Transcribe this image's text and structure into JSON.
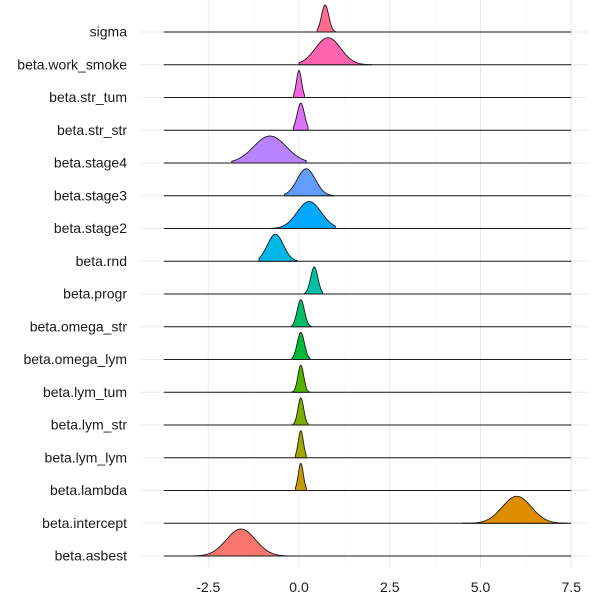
{
  "chart_data": {
    "type": "ridgeline",
    "xlabel": "",
    "ylabel": "",
    "xlim": [
      -4.0,
      7.5
    ],
    "xticks": [
      -2.5,
      0.0,
      2.5,
      5.0,
      7.5
    ],
    "xtick_labels": [
      "-2.5",
      "0.0",
      "2.5",
      "5.0",
      "7.5"
    ],
    "series": [
      {
        "name": "sigma",
        "color": "#FF6C90",
        "mean": 0.72,
        "sd": 0.1,
        "range": [
          0.5,
          1.0
        ]
      },
      {
        "name": "beta.work_smoke",
        "color": "#FF65AE",
        "mean": 0.8,
        "sd": 0.35,
        "range": [
          0.0,
          2.0
        ]
      },
      {
        "name": "beta.str_tum",
        "color": "#F564E3",
        "mean": 0.0,
        "sd": 0.07,
        "range": [
          -0.15,
          0.15
        ]
      },
      {
        "name": "beta.str_str",
        "color": "#DC71FA",
        "mean": 0.05,
        "sd": 0.1,
        "range": [
          -0.15,
          0.25
        ]
      },
      {
        "name": "beta.stage4",
        "color": "#B983FF",
        "mean": -0.8,
        "sd": 0.45,
        "range": [
          -1.85,
          0.2
        ]
      },
      {
        "name": "beta.stage3",
        "color": "#619CFF",
        "mean": 0.2,
        "sd": 0.25,
        "range": [
          -0.4,
          0.95
        ]
      },
      {
        "name": "beta.stage2",
        "color": "#00A9FF",
        "mean": 0.28,
        "sd": 0.33,
        "range": [
          -0.95,
          1.0
        ]
      },
      {
        "name": "beta.rnd",
        "color": "#00B8E7",
        "mean": -0.65,
        "sd": 0.22,
        "range": [
          -1.1,
          -0.05
        ]
      },
      {
        "name": "beta.progr",
        "color": "#00C1A3",
        "mean": 0.42,
        "sd": 0.1,
        "range": [
          0.15,
          0.65
        ]
      },
      {
        "name": "beta.omega_str",
        "color": "#00BE67",
        "mean": 0.05,
        "sd": 0.1,
        "range": [
          -0.2,
          0.35
        ]
      },
      {
        "name": "beta.omega_lym",
        "color": "#00BA38",
        "mean": 0.05,
        "sd": 0.1,
        "range": [
          -0.2,
          0.3
        ]
      },
      {
        "name": "beta.lym_tum",
        "color": "#53B400",
        "mean": 0.05,
        "sd": 0.08,
        "range": [
          -0.2,
          0.3
        ]
      },
      {
        "name": "beta.lym_str",
        "color": "#7CAE00",
        "mean": 0.05,
        "sd": 0.08,
        "range": [
          -0.2,
          0.25
        ]
      },
      {
        "name": "beta.lym_lym",
        "color": "#A3A500",
        "mean": 0.05,
        "sd": 0.07,
        "range": [
          -0.1,
          0.2
        ]
      },
      {
        "name": "beta.lambda",
        "color": "#C49A00",
        "mean": 0.05,
        "sd": 0.07,
        "range": [
          -0.1,
          0.2
        ]
      },
      {
        "name": "beta.intercept",
        "color": "#DE8C00",
        "mean": 6.0,
        "sd": 0.4,
        "range": [
          4.5,
          7.4
        ]
      },
      {
        "name": "beta.asbest",
        "color": "#F8766D",
        "mean": -1.6,
        "sd": 0.4,
        "range": [
          -3.0,
          -0.3
        ]
      }
    ]
  }
}
